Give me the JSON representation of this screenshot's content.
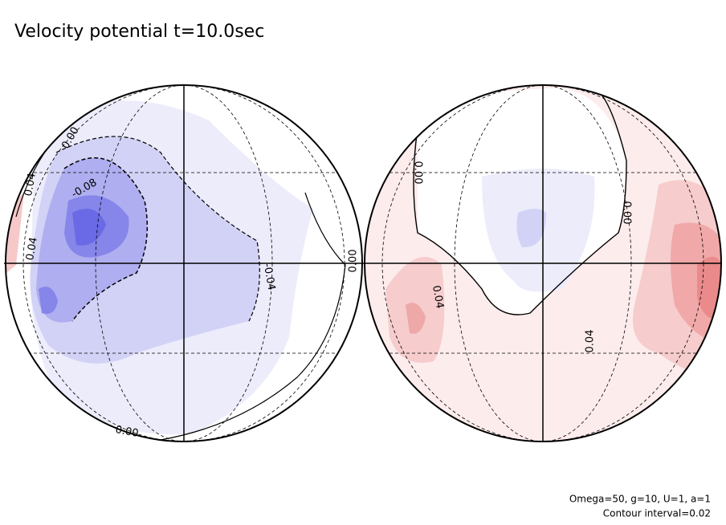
{
  "chart_data": {
    "type": "contour",
    "title": "Velocity potential t=10.0sec",
    "contour_labels": [
      "0.00",
      "0.04",
      "-0.08",
      "0.04",
      "-0.04",
      "0.00",
      "0.00",
      "0.00",
      "0.00",
      "0.04",
      "0.04"
    ],
    "notes": [
      "Omega=50, g=10, U=1, a=1",
      "Contour interval=0.02"
    ]
  }
}
